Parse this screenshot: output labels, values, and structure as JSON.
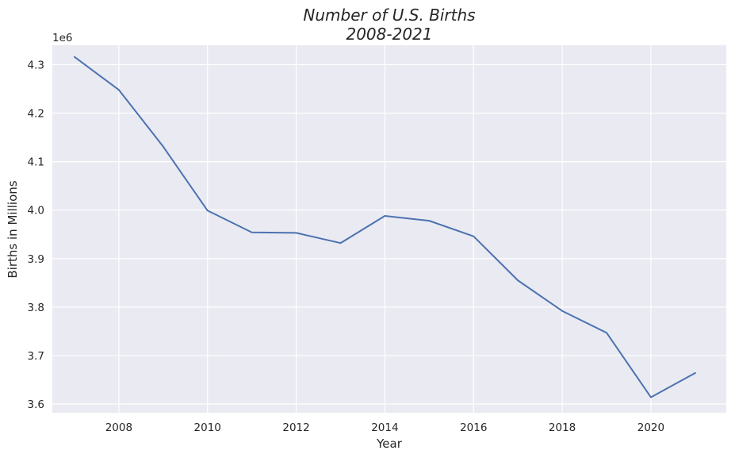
{
  "chart_data": {
    "type": "line",
    "title_line1": "Number of U.S. Births",
    "title_line2": "2008-2021",
    "xlabel": "Year",
    "ylabel": "Births in Millions",
    "offset_label": "1e6",
    "xlim": [
      2006.5,
      2021.7
    ],
    "ylim": [
      3.582,
      4.34
    ],
    "x_ticks": [
      {
        "value": 2008,
        "label": "2008"
      },
      {
        "value": 2010,
        "label": "2010"
      },
      {
        "value": 2012,
        "label": "2012"
      },
      {
        "value": 2014,
        "label": "2014"
      },
      {
        "value": 2016,
        "label": "2016"
      },
      {
        "value": 2018,
        "label": "2018"
      },
      {
        "value": 2020,
        "label": "2020"
      }
    ],
    "y_ticks": [
      {
        "value": 3.6,
        "label": "3.6"
      },
      {
        "value": 3.7,
        "label": "3.7"
      },
      {
        "value": 3.8,
        "label": "3.8"
      },
      {
        "value": 3.9,
        "label": "3.9"
      },
      {
        "value": 4.0,
        "label": "4.0"
      },
      {
        "value": 4.1,
        "label": "4.1"
      },
      {
        "value": 4.2,
        "label": "4.2"
      },
      {
        "value": 4.3,
        "label": "4.3"
      }
    ],
    "grid": true,
    "background_color": "#EAEAF2",
    "grid_color": "#FFFFFF",
    "series": [
      {
        "color": "#4C72B0",
        "x": [
          2007,
          2008,
          2009,
          2010,
          2011,
          2012,
          2013,
          2014,
          2015,
          2016,
          2017,
          2018,
          2019,
          2020,
          2021
        ],
        "y": [
          4.316,
          4.248,
          4.131,
          3.999,
          3.954,
          3.953,
          3.932,
          3.988,
          3.978,
          3.946,
          3.855,
          3.792,
          3.747,
          3.614,
          3.664
        ]
      }
    ]
  }
}
